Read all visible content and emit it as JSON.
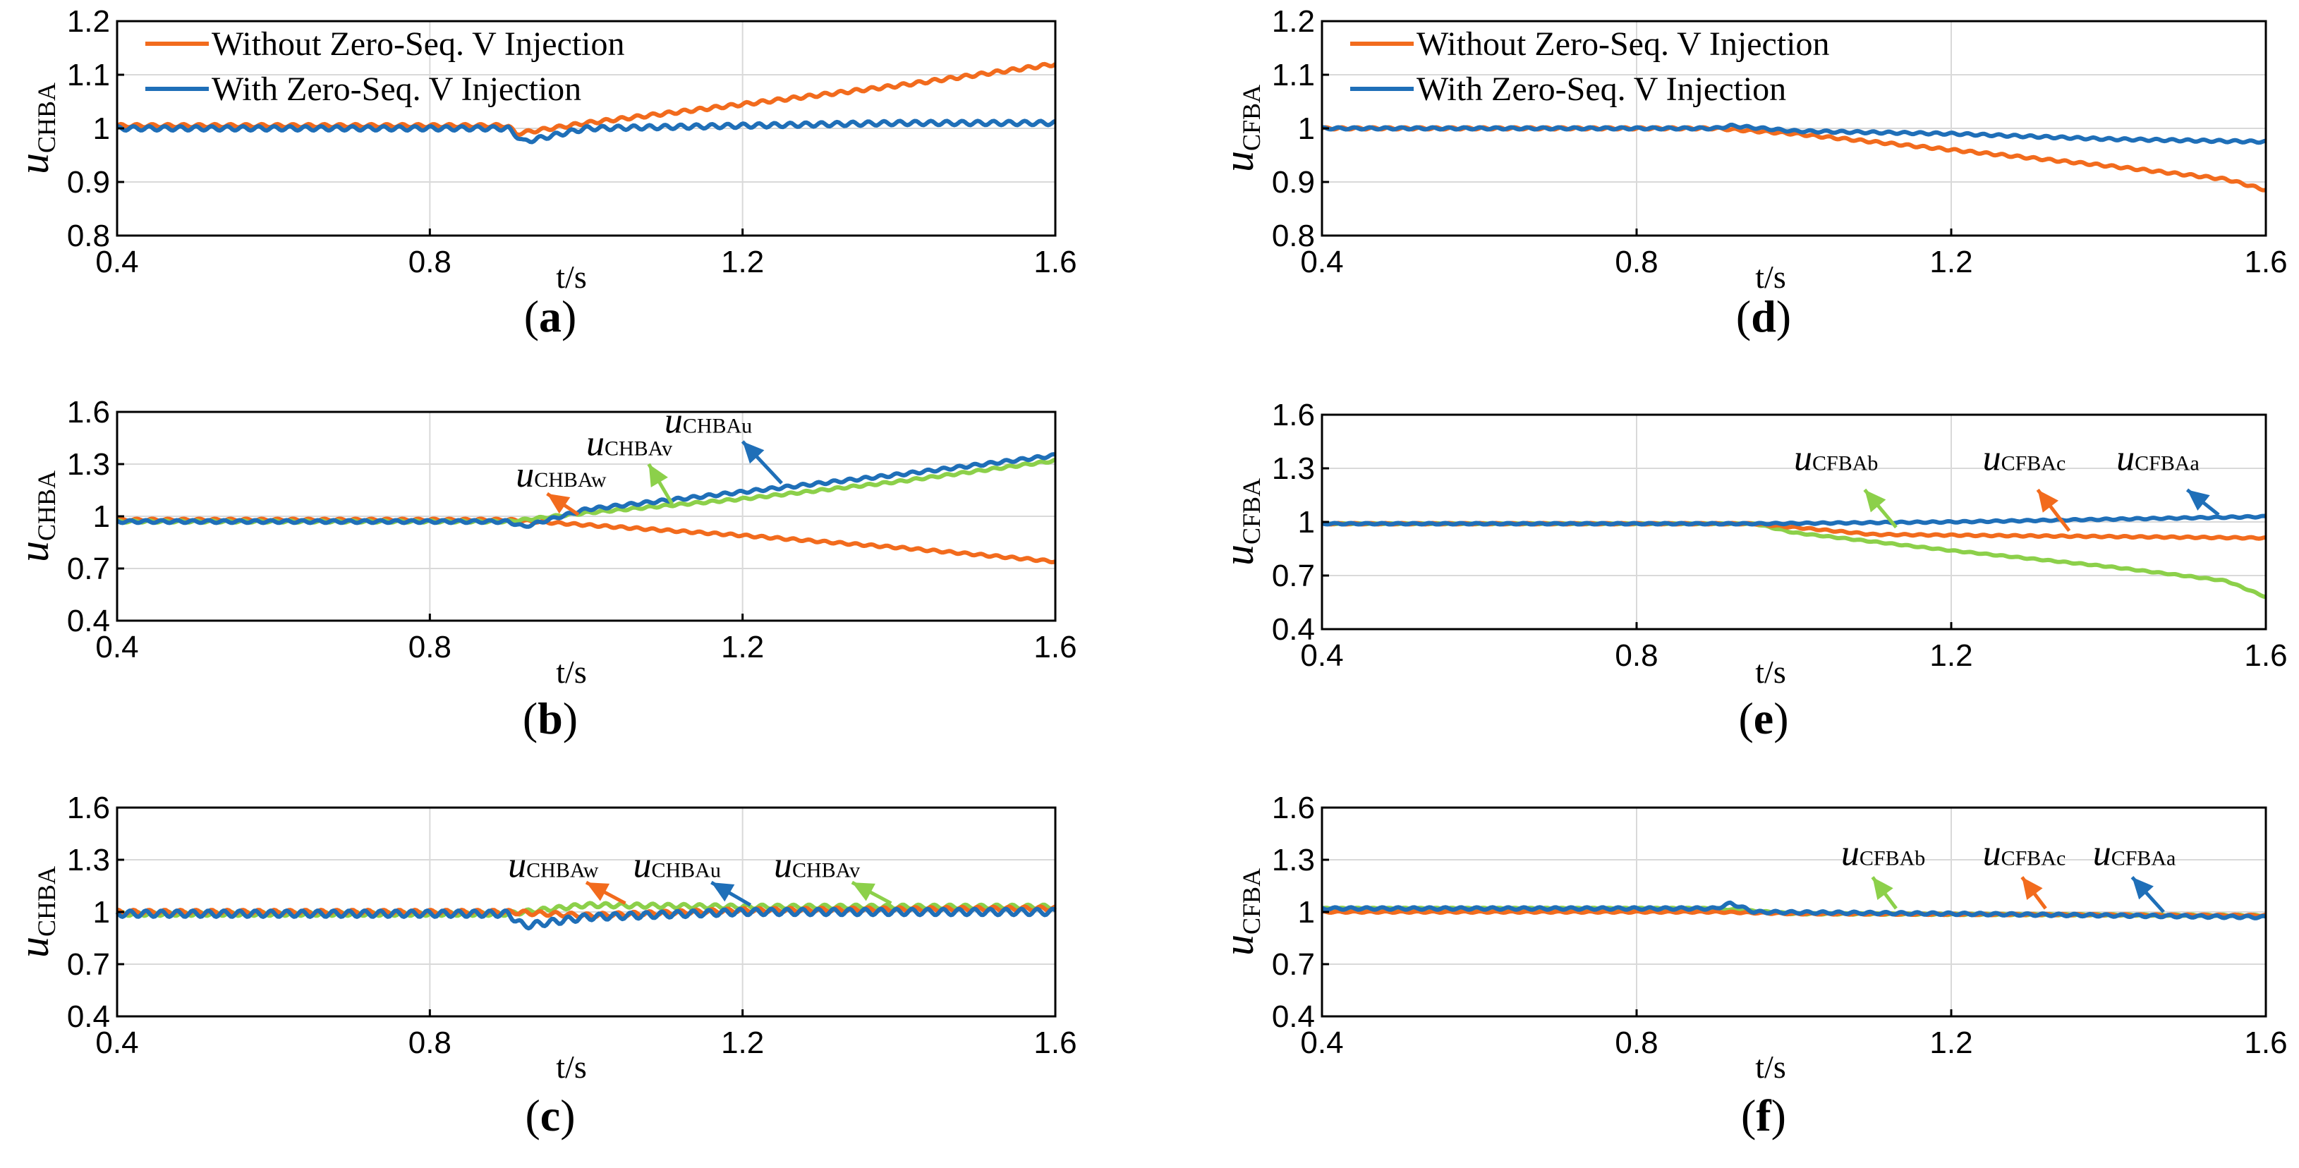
{
  "colors": {
    "orange": "#f26b1d",
    "blue": "#1f6fb8",
    "green": "#8cd04a"
  },
  "chart_data": [
    {
      "id": "a",
      "type": "line",
      "label": "a",
      "xlabel": "t/s",
      "ylabel_main": "u",
      "ylabel_sub": "CHBA",
      "xlim": [
        0.4,
        1.6
      ],
      "ylim": [
        0.8,
        1.2
      ],
      "xticks": [
        0.4,
        0.8,
        1.2,
        1.6
      ],
      "yticks": [
        0.8,
        0.9,
        1,
        1.1,
        1.2
      ],
      "xtick_labels": [
        "0.4",
        "0.8",
        "1.2",
        "1.6"
      ],
      "ytick_labels": [
        "0.8",
        "0.9",
        "1",
        "1.1",
        "1.2"
      ],
      "grid": true,
      "legend_position": "top-left",
      "series": [
        {
          "name": "Without Zero-Seq. V Injection",
          "color": "#f26b1d",
          "ripple": 0.003,
          "x": [
            0.4,
            0.9,
            0.91,
            1.0,
            1.2,
            1.4,
            1.6
          ],
          "y": [
            1.005,
            1.005,
            0.99,
            1.01,
            1.045,
            1.08,
            1.12
          ]
        },
        {
          "name": "With Zero-Seq. V Injection",
          "color": "#1f6fb8",
          "ripple": 0.004,
          "x": [
            0.4,
            0.9,
            0.92,
            1.0,
            1.2,
            1.4,
            1.6
          ],
          "y": [
            1.0,
            1.0,
            0.975,
            1.0,
            1.005,
            1.01,
            1.01
          ]
        }
      ],
      "annotations": []
    },
    {
      "id": "b",
      "type": "line",
      "label": "b",
      "xlabel": "t/s",
      "ylabel_main": "u",
      "ylabel_sub": "CHBA",
      "xlim": [
        0.4,
        1.6
      ],
      "ylim": [
        0.4,
        1.6
      ],
      "xticks": [
        0.4,
        0.8,
        1.2,
        1.6
      ],
      "yticks": [
        0.4,
        0.7,
        1,
        1.3,
        1.6
      ],
      "xtick_labels": [
        "0.4",
        "0.8",
        "1.2",
        "1.6"
      ],
      "ytick_labels": [
        "0.4",
        "0.7",
        "1",
        "1.3",
        "1.6"
      ],
      "grid": true,
      "legend_position": "none",
      "series": [
        {
          "name": "uCHBAw",
          "color": "#f26b1d",
          "ripple": 0.006,
          "x": [
            0.4,
            0.9,
            1.0,
            1.2,
            1.4,
            1.6
          ],
          "y": [
            0.98,
            0.98,
            0.95,
            0.89,
            0.82,
            0.74
          ]
        },
        {
          "name": "uCHBAv",
          "color": "#8cd04a",
          "ripple": 0.006,
          "x": [
            0.4,
            0.9,
            1.0,
            1.2,
            1.4,
            1.6
          ],
          "y": [
            0.97,
            0.97,
            1.02,
            1.1,
            1.2,
            1.32
          ]
        },
        {
          "name": "uCHBAu",
          "color": "#1f6fb8",
          "ripple": 0.008,
          "x": [
            0.4,
            0.9,
            0.92,
            1.0,
            1.2,
            1.4,
            1.6
          ],
          "y": [
            0.97,
            0.97,
            0.94,
            1.04,
            1.14,
            1.24,
            1.35
          ]
        }
      ],
      "annotations": [
        {
          "main": "u",
          "sub": "CHBAw",
          "color": "#f26b1d",
          "tx": 0.91,
          "ty": 1.17,
          "ax": 0.95,
          "ay": 1.13,
          "hx": 0.99,
          "hy": 1.01
        },
        {
          "main": "u",
          "sub": "CHBAv",
          "color": "#8cd04a",
          "tx": 1.0,
          "ty": 1.35,
          "ax": 1.08,
          "ay": 1.3,
          "hx": 1.11,
          "hy": 1.07
        },
        {
          "main": "u",
          "sub": "CHBAu",
          "color": "#1f6fb8",
          "tx": 1.1,
          "ty": 1.48,
          "ax": 1.2,
          "ay": 1.43,
          "hx": 1.25,
          "hy": 1.19
        }
      ]
    },
    {
      "id": "c",
      "type": "line",
      "label": "c",
      "xlabel": "t/s",
      "ylabel_main": "u",
      "ylabel_sub": "CHBA",
      "xlim": [
        0.4,
        1.6
      ],
      "ylim": [
        0.4,
        1.6
      ],
      "xticks": [
        0.4,
        0.8,
        1.2,
        1.6
      ],
      "yticks": [
        0.4,
        0.7,
        1,
        1.3,
        1.6
      ],
      "xtick_labels": [
        "0.4",
        "0.8",
        "1.2",
        "1.6"
      ],
      "ytick_labels": [
        "0.4",
        "0.7",
        "1",
        "1.3",
        "1.6"
      ],
      "grid": true,
      "legend_position": "none",
      "series": [
        {
          "name": "uCHBAv",
          "color": "#8cd04a",
          "ripple": 0.012,
          "x": [
            0.4,
            0.9,
            1.0,
            1.2,
            1.6
          ],
          "y": [
            0.99,
            0.99,
            1.04,
            1.03,
            1.03
          ]
        },
        {
          "name": "uCHBAw",
          "color": "#f26b1d",
          "ripple": 0.012,
          "x": [
            0.4,
            0.9,
            1.0,
            1.2,
            1.6
          ],
          "y": [
            1.0,
            1.0,
            0.98,
            1.01,
            1.02
          ]
        },
        {
          "name": "uCHBAu",
          "color": "#1f6fb8",
          "ripple": 0.018,
          "x": [
            0.4,
            0.9,
            0.92,
            1.0,
            1.2,
            1.6
          ],
          "y": [
            0.99,
            0.99,
            0.92,
            0.97,
            1.0,
            1.0
          ]
        }
      ],
      "annotations": [
        {
          "main": "u",
          "sub": "CHBAw",
          "color": "#f26b1d",
          "tx": 0.9,
          "ty": 1.2,
          "ax": 1.0,
          "ay": 1.17,
          "hx": 1.05,
          "hy": 1.05
        },
        {
          "main": "u",
          "sub": "CHBAu",
          "color": "#1f6fb8",
          "tx": 1.06,
          "ty": 1.2,
          "ax": 1.16,
          "ay": 1.17,
          "hx": 1.21,
          "hy": 1.04
        },
        {
          "main": "u",
          "sub": "CHBAv",
          "color": "#8cd04a",
          "tx": 1.24,
          "ty": 1.2,
          "ax": 1.34,
          "ay": 1.17,
          "hx": 1.39,
          "hy": 1.05
        }
      ]
    },
    {
      "id": "d",
      "type": "line",
      "label": "d",
      "xlabel": "t/s",
      "ylabel_main": "u",
      "ylabel_sub": "CFBA",
      "xlim": [
        0.4,
        1.6
      ],
      "ylim": [
        0.8,
        1.2
      ],
      "xticks": [
        0.4,
        0.8,
        1.2,
        1.6
      ],
      "yticks": [
        0.8,
        0.9,
        1,
        1.1,
        1.2
      ],
      "xtick_labels": [
        "0.4",
        "0.8",
        "1.2",
        "1.6"
      ],
      "ytick_labels": [
        "0.8",
        "0.9",
        "1",
        "1.1",
        "1.2"
      ],
      "grid": true,
      "legend_position": "top-left",
      "series": [
        {
          "name": "Without Zero-Seq. V Injection",
          "color": "#f26b1d",
          "ripple": 0.002,
          "x": [
            0.4,
            0.9,
            1.0,
            1.2,
            1.4,
            1.55,
            1.6
          ],
          "y": [
            1.0,
            1.0,
            0.99,
            0.96,
            0.93,
            0.905,
            0.885
          ]
        },
        {
          "name": "With Zero-Seq. V Injection",
          "color": "#1f6fb8",
          "ripple": 0.002,
          "x": [
            0.4,
            0.9,
            0.92,
            1.0,
            1.2,
            1.4,
            1.6
          ],
          "y": [
            1.0,
            1.0,
            1.005,
            0.995,
            0.99,
            0.98,
            0.975
          ]
        }
      ],
      "annotations": []
    },
    {
      "id": "e",
      "type": "line",
      "label": "e",
      "xlabel": "t/s",
      "ylabel_main": "u",
      "ylabel_sub": "CFBA",
      "xlim": [
        0.4,
        1.6
      ],
      "ylim": [
        0.4,
        1.6
      ],
      "xticks": [
        0.4,
        0.8,
        1.2,
        1.6
      ],
      "yticks": [
        0.4,
        0.7,
        1,
        1.3,
        1.6
      ],
      "xtick_labels": [
        "0.4",
        "0.8",
        "1.2",
        "1.6"
      ],
      "ytick_labels": [
        "0.4",
        "0.7",
        "1",
        "1.3",
        "1.6"
      ],
      "grid": true,
      "legend_position": "none",
      "series": [
        {
          "name": "uCFBAb",
          "color": "#8cd04a",
          "ripple": 0.003,
          "x": [
            0.4,
            0.95,
            1.0,
            1.2,
            1.4,
            1.55,
            1.6
          ],
          "y": [
            0.99,
            0.99,
            0.94,
            0.84,
            0.75,
            0.67,
            0.58
          ]
        },
        {
          "name": "uCFBAc",
          "color": "#f26b1d",
          "ripple": 0.004,
          "x": [
            0.4,
            0.95,
            1.1,
            1.6
          ],
          "y": [
            0.99,
            0.99,
            0.93,
            0.91
          ]
        },
        {
          "name": "uCFBAa",
          "color": "#1f6fb8",
          "ripple": 0.004,
          "x": [
            0.4,
            0.95,
            1.2,
            1.6
          ],
          "y": [
            0.99,
            0.99,
            1.0,
            1.03
          ]
        }
      ],
      "annotations": [
        {
          "main": "u",
          "sub": "CFBAb",
          "color": "#8cd04a",
          "tx": 1.0,
          "ty": 1.29,
          "ax": 1.09,
          "ay": 1.18,
          "hx": 1.13,
          "hy": 0.97
        },
        {
          "main": "u",
          "sub": "CFBAc",
          "color": "#f26b1d",
          "tx": 1.24,
          "ty": 1.29,
          "ax": 1.31,
          "ay": 1.18,
          "hx": 1.35,
          "hy": 0.95
        },
        {
          "main": "u",
          "sub": "CFBAa",
          "color": "#1f6fb8",
          "tx": 1.41,
          "ty": 1.29,
          "ax": 1.5,
          "ay": 1.18,
          "hx": 1.54,
          "hy": 1.04
        }
      ]
    },
    {
      "id": "f",
      "type": "line",
      "label": "f",
      "xlabel": "t/s",
      "ylabel_main": "u",
      "ylabel_sub": "CFBA",
      "xlim": [
        0.4,
        1.6
      ],
      "ylim": [
        0.4,
        1.6
      ],
      "xticks": [
        0.4,
        0.8,
        1.2,
        1.6
      ],
      "yticks": [
        0.4,
        0.7,
        1,
        1.3,
        1.6
      ],
      "xtick_labels": [
        "0.4",
        "0.8",
        "1.2",
        "1.6"
      ],
      "ytick_labels": [
        "0.4",
        "0.7",
        "1",
        "1.3",
        "1.6"
      ],
      "grid": true,
      "legend_position": "none",
      "series": [
        {
          "name": "uCFBAb",
          "color": "#8cd04a",
          "ripple": 0.004,
          "x": [
            0.4,
            0.9,
            1.0,
            1.6
          ],
          "y": [
            1.02,
            1.02,
            0.99,
            0.98
          ]
        },
        {
          "name": "uCFBAc",
          "color": "#f26b1d",
          "ripple": 0.004,
          "x": [
            0.4,
            0.9,
            1.0,
            1.6
          ],
          "y": [
            1.0,
            1.0,
            0.99,
            0.98
          ]
        },
        {
          "name": "uCFBAa",
          "color": "#1f6fb8",
          "ripple": 0.007,
          "x": [
            0.4,
            0.9,
            0.92,
            0.95,
            1.2,
            1.6
          ],
          "y": [
            1.02,
            1.02,
            1.05,
            1.0,
            0.99,
            0.97
          ]
        }
      ],
      "annotations": [
        {
          "main": "u",
          "sub": "CFBAb",
          "color": "#8cd04a",
          "tx": 1.06,
          "ty": 1.27,
          "ax": 1.1,
          "ay": 1.2,
          "hx": 1.13,
          "hy": 1.02
        },
        {
          "main": "u",
          "sub": "CFBAc",
          "color": "#f26b1d",
          "tx": 1.24,
          "ty": 1.27,
          "ax": 1.29,
          "ay": 1.2,
          "hx": 1.32,
          "hy": 1.02
        },
        {
          "main": "u",
          "sub": "CFBAa",
          "color": "#1f6fb8",
          "tx": 1.38,
          "ty": 1.27,
          "ax": 1.43,
          "ay": 1.2,
          "hx": 1.47,
          "hy": 1.0
        }
      ]
    }
  ]
}
